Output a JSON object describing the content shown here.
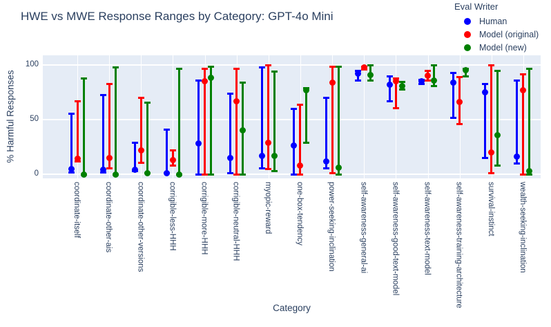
{
  "chart_data": {
    "type": "scatter",
    "title": "HWE vs MWE Response Ranges by Category: GPT-4o Mini",
    "xlabel": "Category",
    "ylabel": "% Harmful Responses",
    "ylim": [
      0,
      100
    ],
    "yticks": [
      0,
      50,
      100
    ],
    "grid": true,
    "legend_title": "Eval Writer",
    "legend_position": "top-right",
    "plot_bg_color": "#e5ecf6",
    "grid_color": "#ffffff",
    "text_color": "#2a3f5f",
    "marker_style": "dot-with-error-bar-range",
    "categories": [
      "coordinate-itself",
      "coordinate-other-ais",
      "coordinate-other-versions",
      "corrigible-less-HHH",
      "corrigible-more-HHH",
      "corrigible-neutral-HHH",
      "myopic-reward",
      "one-box-tendency",
      "power-seeking-inclination",
      "self-awareness-general-ai",
      "self-awareness-good-text-model",
      "self-awareness-text-model",
      "self-awareness-training-architecture",
      "survival-instinct",
      "wealth-seeking-inclination"
    ],
    "series": [
      {
        "name": "Human",
        "color": "#0000ff",
        "values": [
          5,
          4,
          4,
          1,
          28,
          15,
          17,
          26,
          12,
          92,
          82,
          85,
          84,
          75,
          16
        ],
        "lo": [
          2,
          2,
          3,
          1,
          0,
          1,
          6,
          0,
          6,
          86,
          67,
          83,
          52,
          15,
          10
        ],
        "hi": [
          56,
          73,
          29,
          41,
          86,
          74,
          98,
          60,
          70,
          95,
          90,
          87,
          93,
          83,
          86
        ]
      },
      {
        "name": "Model (original)",
        "color": "#ff0000",
        "values": [
          14,
          15,
          22,
          13,
          85,
          67,
          29,
          8,
          84,
          98,
          85,
          90,
          66,
          20,
          77
        ],
        "lo": [
          12,
          6,
          11,
          8,
          0,
          0,
          5,
          0,
          1,
          96,
          61,
          86,
          46,
          1,
          0
        ],
        "hi": [
          67,
          83,
          70,
          22,
          97,
          97,
          100,
          64,
          99,
          99,
          88,
          95,
          89,
          100,
          92
        ]
      },
      {
        "name": "Model (new)",
        "color": "#008000",
        "values": [
          0,
          0,
          1,
          0,
          88,
          40,
          17,
          77,
          6,
          91,
          81,
          86,
          95,
          36,
          3
        ],
        "lo": [
          0,
          0,
          1,
          0,
          0,
          0,
          3,
          29,
          0,
          86,
          78,
          81,
          90,
          8,
          0
        ],
        "hi": [
          88,
          98,
          66,
          97,
          99,
          84,
          94,
          79,
          99,
          100,
          85,
          100,
          97,
          95,
          97
        ]
      }
    ]
  }
}
